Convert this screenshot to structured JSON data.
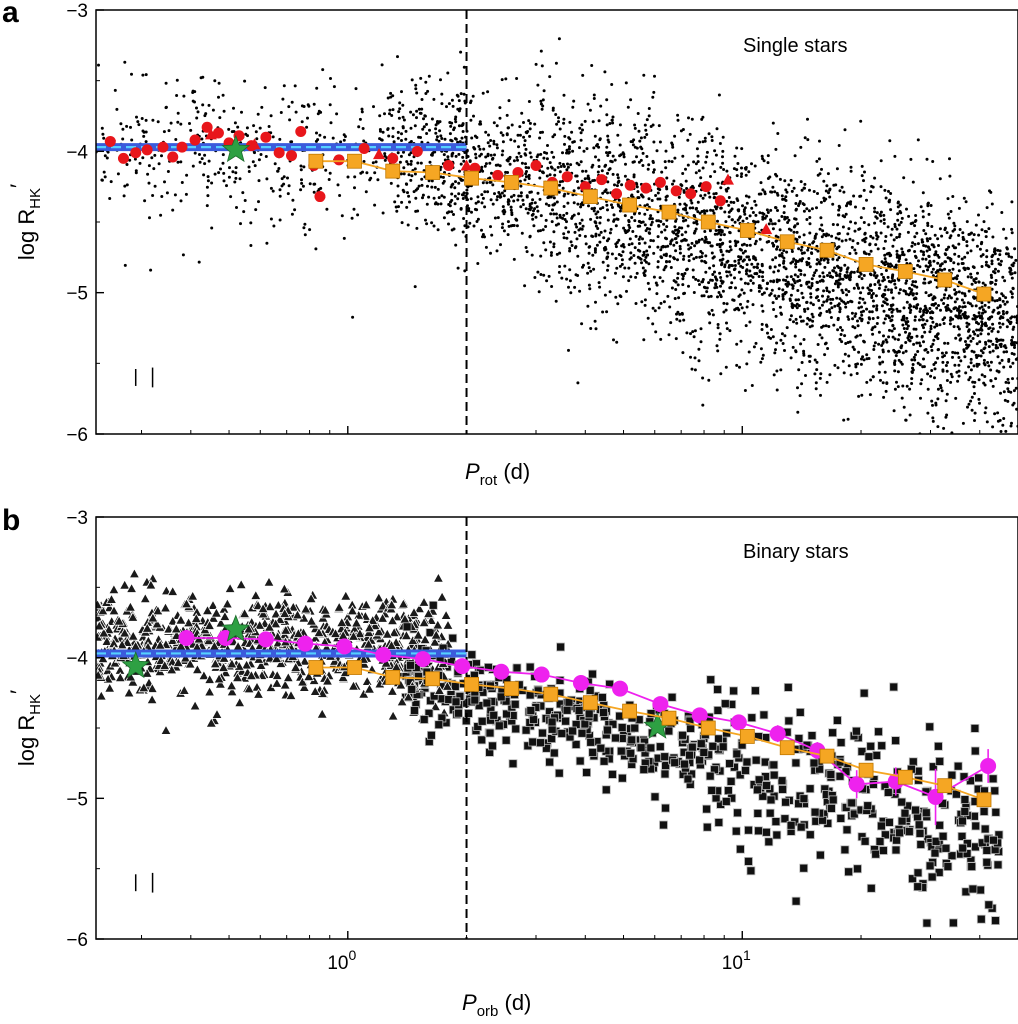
{
  "chart_data": [
    {
      "panel": "a",
      "type": "scatter",
      "annotation": "Single stars",
      "xlabel": {
        "main": "P",
        "sub": "rot",
        "unit": " (d)"
      },
      "ylabel": {
        "main": "log R",
        "sub": "HK",
        "prime": "′"
      },
      "x_scale": "log",
      "xlim": [
        0.23,
        50
      ],
      "ylim": [
        -6,
        -3
      ],
      "yticks": [
        -6,
        -5,
        -4,
        -3
      ],
      "ytick_labels": [
        "−6",
        "−5",
        "−4",
        "−3"
      ],
      "xticks": [],
      "vline_x": 2,
      "hline": {
        "y": -3.97,
        "x_range": [
          0.23,
          2
        ],
        "color": "#3b5bdc",
        "dash_color": "#55d0ff"
      },
      "background_scatter": {
        "color": "#000000",
        "marker": "dot",
        "n_points": 4200
      },
      "series": [
        {
          "marker": "circle-red",
          "color": "#e8161b",
          "points": [
            [
              0.25,
              -3.93
            ],
            [
              0.27,
              -4.05
            ],
            [
              0.29,
              -4.01
            ],
            [
              0.31,
              -3.99
            ],
            [
              0.34,
              -3.97
            ],
            [
              0.36,
              -4.04
            ],
            [
              0.38,
              -3.97
            ],
            [
              0.41,
              -3.92
            ],
            [
              0.44,
              -3.83
            ],
            [
              0.47,
              -3.87
            ],
            [
              0.5,
              -3.94
            ],
            [
              0.53,
              -3.89
            ],
            [
              0.57,
              -3.96
            ],
            [
              0.62,
              -3.9
            ],
            [
              0.67,
              -4.01
            ],
            [
              0.72,
              -4.03
            ],
            [
              0.76,
              -3.86
            ],
            [
              0.82,
              -4.1
            ],
            [
              0.85,
              -4.32
            ],
            [
              0.95,
              -4.06
            ],
            [
              1.1,
              -3.98
            ],
            [
              1.3,
              -4.05
            ],
            [
              1.5,
              -4.0
            ],
            [
              1.8,
              -4.1
            ],
            [
              2.1,
              -4.12
            ],
            [
              2.4,
              -4.17
            ],
            [
              2.7,
              -4.15
            ],
            [
              3.0,
              -4.1
            ],
            [
              3.3,
              -4.22
            ],
            [
              3.6,
              -4.18
            ],
            [
              4.0,
              -4.25
            ],
            [
              4.4,
              -4.2
            ],
            [
              4.8,
              -4.3
            ],
            [
              5.2,
              -4.24
            ],
            [
              5.7,
              -4.26
            ],
            [
              6.2,
              -4.22
            ],
            [
              6.8,
              -4.28
            ],
            [
              7.4,
              -4.3
            ],
            [
              8.1,
              -4.25
            ],
            [
              8.8,
              -4.35
            ]
          ]
        },
        {
          "marker": "triangle-red",
          "color": "#e8161b",
          "points": [
            [
              0.45,
              -3.88
            ],
            [
              0.58,
              -3.95
            ],
            [
              1.2,
              -4.02
            ],
            [
              2.0,
              -4.1
            ],
            [
              9.2,
              -4.2
            ],
            [
              11.5,
              -4.55
            ]
          ]
        },
        {
          "marker": "star",
          "color": "#2ea043",
          "points": [
            [
              0.52,
              -3.99
            ]
          ]
        },
        {
          "marker": "square",
          "color": "#f5a623",
          "line": true,
          "points": [
            [
              0.83,
              -4.07
            ],
            [
              1.04,
              -4.07
            ],
            [
              1.3,
              -4.14
            ],
            [
              1.64,
              -4.15
            ],
            [
              2.06,
              -4.19
            ],
            [
              2.6,
              -4.22
            ],
            [
              3.27,
              -4.26
            ],
            [
              4.12,
              -4.32
            ],
            [
              5.18,
              -4.38
            ],
            [
              6.52,
              -4.43
            ],
            [
              8.2,
              -4.5
            ],
            [
              10.3,
              -4.56
            ],
            [
              13.0,
              -4.64
            ],
            [
              16.4,
              -4.7
            ],
            [
              20.6,
              -4.8
            ],
            [
              25.9,
              -4.85
            ],
            [
              32.6,
              -4.91
            ],
            [
              41.0,
              -5.01
            ]
          ]
        }
      ],
      "error_bars": [
        [
          0.29,
          -5.6,
          0.06
        ],
        [
          0.32,
          -5.6,
          0.07
        ]
      ]
    },
    {
      "panel": "b",
      "type": "scatter",
      "annotation": "Binary stars",
      "xlabel": {
        "main": "P",
        "sub": "orb",
        "unit": " (d)"
      },
      "ylabel": {
        "main": "log R",
        "sub": "HK",
        "prime": "′"
      },
      "x_scale": "log",
      "xlim": [
        0.23,
        50
      ],
      "ylim": [
        -6,
        -3
      ],
      "yticks": [
        -6,
        -5,
        -4,
        -3
      ],
      "ytick_labels": [
        "−6",
        "−5",
        "−4",
        "−3"
      ],
      "xticks": [
        1,
        10
      ],
      "xtick_labels": [
        {
          "base": "10",
          "exp": "0"
        },
        {
          "base": "10",
          "exp": "1"
        }
      ],
      "vline_x": 2,
      "hline": {
        "y": -3.97,
        "x_range": [
          0.23,
          2
        ],
        "color": "#3b5bdc",
        "dash_color": "#55d0ff"
      },
      "background_scatter": {
        "color": "#000000",
        "marker": "triangle-and-xsquare",
        "n_points": 1500
      },
      "series": [
        {
          "marker": "circle-magenta",
          "color": "#ee22ee",
          "line": true,
          "points": [
            [
              0.39,
              -3.86
            ],
            [
              0.49,
              -3.86
            ],
            [
              0.62,
              -3.87
            ],
            [
              0.78,
              -3.9
            ],
            [
              0.98,
              -3.92
            ],
            [
              1.23,
              -3.98
            ],
            [
              1.55,
              -4.01
            ],
            [
              1.95,
              -4.06
            ],
            [
              2.45,
              -4.1
            ],
            [
              3.1,
              -4.12
            ],
            [
              3.9,
              -4.18
            ],
            [
              4.9,
              -4.22
            ],
            [
              6.2,
              -4.33
            ],
            [
              7.8,
              -4.41
            ],
            [
              9.8,
              -4.46
            ],
            [
              12.3,
              -4.54
            ],
            [
              15.5,
              -4.66
            ],
            [
              19.5,
              -4.9
            ],
            [
              24.5,
              -4.88
            ],
            [
              30.9,
              -4.99
            ],
            [
              42.0,
              -4.77
            ]
          ],
          "yerr": [
            0.02,
            0.02,
            0.02,
            0.02,
            0.02,
            0.02,
            0.02,
            0.02,
            0.02,
            0.02,
            0.03,
            0.03,
            0.03,
            0.04,
            0.05,
            0.06,
            0.06,
            0.1,
            0.1,
            0.2,
            0.12
          ]
        },
        {
          "marker": "star",
          "color": "#2ea043",
          "points": [
            [
              0.29,
              -4.06
            ],
            [
              0.52,
              -3.8
            ],
            [
              6.1,
              -4.49
            ]
          ]
        },
        {
          "marker": "square",
          "color": "#f5a623",
          "line": true,
          "points": [
            [
              0.83,
              -4.07
            ],
            [
              1.04,
              -4.07
            ],
            [
              1.3,
              -4.14
            ],
            [
              1.64,
              -4.15
            ],
            [
              2.06,
              -4.19
            ],
            [
              2.6,
              -4.22
            ],
            [
              3.27,
              -4.26
            ],
            [
              4.12,
              -4.32
            ],
            [
              5.18,
              -4.38
            ],
            [
              6.52,
              -4.43
            ],
            [
              8.2,
              -4.5
            ],
            [
              10.3,
              -4.56
            ],
            [
              13.0,
              -4.64
            ],
            [
              16.4,
              -4.7
            ],
            [
              20.6,
              -4.8
            ],
            [
              25.9,
              -4.85
            ],
            [
              32.6,
              -4.91
            ],
            [
              41.0,
              -5.01
            ]
          ]
        }
      ],
      "error_bars": [
        [
          0.29,
          -5.6,
          0.06
        ],
        [
          0.32,
          -5.6,
          0.07
        ]
      ]
    }
  ]
}
